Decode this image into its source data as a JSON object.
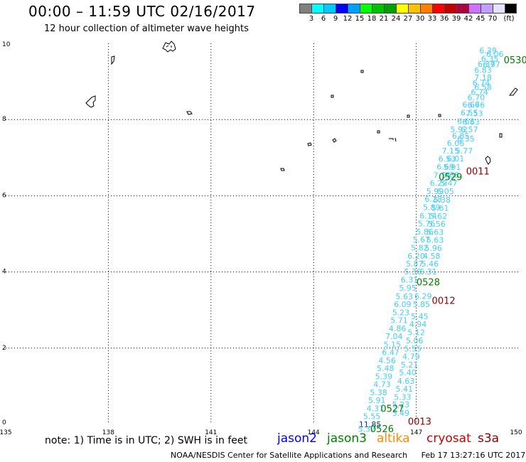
{
  "header": {
    "title": "00:00 – 11:59 UTC 02/16/2017",
    "subtitle": "12 hour collection of altimeter wave heights"
  },
  "legend": {
    "colors": [
      "#808080",
      "#00ffff",
      "#00c8ff",
      "#0000ff",
      "#00a0ff",
      "#00ff00",
      "#00c000",
      "#00a000",
      "#ffff00",
      "#ffc000",
      "#ff8000",
      "#ff0000",
      "#c00000",
      "#b00040",
      "#d070ff",
      "#c0a0ff",
      "#e8e0ff",
      "#000000"
    ],
    "labels": [
      "3",
      "6",
      "9",
      "12",
      "15",
      "18",
      "21",
      "24",
      "27",
      "30",
      "33",
      "36",
      "39",
      "42",
      "45",
      "70",
      "(ft)"
    ]
  },
  "axes": {
    "x_ticks": [
      "135",
      "138",
      "141",
      "144",
      "147",
      "150"
    ],
    "y_ticks": [
      "0",
      "2",
      "4",
      "6",
      "8",
      "10"
    ]
  },
  "wave_labels": {
    "track_colors": {
      "jason3": "#40d0ff",
      "other": "#1030a0"
    },
    "values": [
      {
        "t": "6.39",
        "x": 149.1,
        "y": 9.81,
        "c": "jason3"
      },
      {
        "t": "6.06",
        "x": 149.3,
        "y": 9.72,
        "c": "jason3"
      },
      {
        "t": "6.35",
        "x": 149.15,
        "y": 9.6,
        "c": "jason3"
      },
      {
        "t": "6.37",
        "x": 149.05,
        "y": 9.46,
        "c": "jason3"
      },
      {
        "t": "6.97",
        "x": 149.2,
        "y": 9.45,
        "c": "jason3"
      },
      {
        "t": "6.83",
        "x": 148.95,
        "y": 9.3,
        "c": "jason3"
      },
      {
        "t": "7.18",
        "x": 148.95,
        "y": 9.1,
        "c": "jason3"
      },
      {
        "t": "6.74",
        "x": 148.9,
        "y": 8.96,
        "c": "jason3"
      },
      {
        "t": "6.58",
        "x": 148.95,
        "y": 8.85,
        "c": "jason3"
      },
      {
        "t": "6.74",
        "x": 148.85,
        "y": 8.72,
        "c": "jason3"
      },
      {
        "t": "6.70",
        "x": 148.75,
        "y": 8.58,
        "c": "jason3"
      },
      {
        "t": "6.66",
        "x": 148.6,
        "y": 8.4,
        "c": "jason3"
      },
      {
        "t": "6.76",
        "x": 148.75,
        "y": 8.39,
        "c": "jason3"
      },
      {
        "t": "6.55",
        "x": 148.55,
        "y": 8.18,
        "c": "jason3"
      },
      {
        "t": "7.53",
        "x": 148.7,
        "y": 8.16,
        "c": "jason3"
      },
      {
        "t": "6.63",
        "x": 148.45,
        "y": 7.96,
        "c": "jason3"
      },
      {
        "t": "6.63",
        "x": 148.6,
        "y": 7.94,
        "c": "jason3"
      },
      {
        "t": "5.92",
        "x": 148.25,
        "y": 7.74,
        "c": "jason3"
      },
      {
        "t": "6.57",
        "x": 148.55,
        "y": 7.74,
        "c": "jason3"
      },
      {
        "t": "6.85",
        "x": 148.3,
        "y": 7.57,
        "c": "jason3"
      },
      {
        "t": "6.35",
        "x": 148.45,
        "y": 7.5,
        "c": "jason3"
      },
      {
        "t": "6.06",
        "x": 148.15,
        "y": 7.38,
        "c": "jason3"
      },
      {
        "t": "5.77",
        "x": 148.4,
        "y": 7.18,
        "c": "jason3"
      },
      {
        "t": "7.15",
        "x": 148.0,
        "y": 7.18,
        "c": "jason3"
      },
      {
        "t": "6.53",
        "x": 147.9,
        "y": 6.97,
        "c": "jason3"
      },
      {
        "t": "6.01",
        "x": 148.15,
        "y": 6.98,
        "c": "jason3"
      },
      {
        "t": "6.69",
        "x": 147.85,
        "y": 6.76,
        "c": "jason3"
      },
      {
        "t": "5.91",
        "x": 148.05,
        "y": 6.75,
        "c": "jason3"
      },
      {
        "t": "7.15",
        "x": 147.75,
        "y": 6.54,
        "c": "jason3"
      },
      {
        "t": "5.68",
        "x": 148.0,
        "y": 6.55,
        "c": "jason3"
      },
      {
        "t": "6.29",
        "x": 147.65,
        "y": 6.33,
        "c": "jason3"
      },
      {
        "t": "5.47",
        "x": 147.95,
        "y": 6.33,
        "c": "jason3"
      },
      {
        "t": "5.99",
        "x": 147.55,
        "y": 6.12,
        "c": "jason3"
      },
      {
        "t": "6.05",
        "x": 147.85,
        "y": 6.12,
        "c": "jason3"
      },
      {
        "t": "6.28",
        "x": 147.5,
        "y": 5.91,
        "c": "jason3"
      },
      {
        "t": "5.38",
        "x": 147.75,
        "y": 5.9,
        "c": "jason3"
      },
      {
        "t": "5.89",
        "x": 147.45,
        "y": 5.7,
        "c": "jason3"
      },
      {
        "t": "5.61",
        "x": 147.7,
        "y": 5.68,
        "c": "jason3"
      },
      {
        "t": "6.14",
        "x": 147.35,
        "y": 5.48,
        "c": "jason3"
      },
      {
        "t": "5.62",
        "x": 147.65,
        "y": 5.47,
        "c": "jason3"
      },
      {
        "t": "5.76",
        "x": 147.3,
        "y": 5.27,
        "c": "jason3"
      },
      {
        "t": "5.56",
        "x": 147.6,
        "y": 5.26,
        "c": "jason3"
      },
      {
        "t": "5.86",
        "x": 147.25,
        "y": 5.06,
        "c": "jason3"
      },
      {
        "t": "5.63",
        "x": 147.55,
        "y": 5.05,
        "c": "jason3"
      },
      {
        "t": "5.67",
        "x": 147.15,
        "y": 4.85,
        "c": "jason3"
      },
      {
        "t": "5.63",
        "x": 147.55,
        "y": 4.84,
        "c": "jason3"
      },
      {
        "t": "5.82",
        "x": 147.1,
        "y": 4.64,
        "c": "jason3"
      },
      {
        "t": "5.96",
        "x": 147.5,
        "y": 4.63,
        "c": "jason3"
      },
      {
        "t": "6.20",
        "x": 147.0,
        "y": 4.42,
        "c": "jason3"
      },
      {
        "t": "4.58",
        "x": 147.45,
        "y": 4.42,
        "c": "jason3"
      },
      {
        "t": "5.87",
        "x": 146.95,
        "y": 4.22,
        "c": "jason3"
      },
      {
        "t": "5.46",
        "x": 147.4,
        "y": 4.22,
        "c": "jason3"
      },
      {
        "t": "5.36",
        "x": 146.9,
        "y": 4.01,
        "c": "jason3"
      },
      {
        "t": "6.31",
        "x": 147.35,
        "y": 4.01,
        "c": "jason3"
      },
      {
        "t": "6.31",
        "x": 146.8,
        "y": 3.8,
        "c": "jason3"
      },
      {
        "t": "5.95",
        "x": 146.75,
        "y": 3.58,
        "c": "jason3"
      },
      {
        "t": "6.29",
        "x": 147.2,
        "y": 3.37,
        "c": "jason3"
      },
      {
        "t": "5.63",
        "x": 146.65,
        "y": 3.36,
        "c": "jason3"
      },
      {
        "t": "6.09",
        "x": 146.6,
        "y": 3.15,
        "c": "jason3"
      },
      {
        "t": "5.85",
        "x": 147.15,
        "y": 3.15,
        "c": "jason3"
      },
      {
        "t": "5.23",
        "x": 146.55,
        "y": 2.94,
        "c": "jason3"
      },
      {
        "t": "5.71",
        "x": 146.5,
        "y": 2.73,
        "c": "jason3"
      },
      {
        "t": "5.45",
        "x": 147.1,
        "y": 2.84,
        "c": "jason3"
      },
      {
        "t": "4.86",
        "x": 146.45,
        "y": 2.52,
        "c": "jason3"
      },
      {
        "t": "4.94",
        "x": 147.05,
        "y": 2.63,
        "c": "jason3"
      },
      {
        "t": "5.12",
        "x": 147.0,
        "y": 2.42,
        "c": "jason3"
      },
      {
        "t": "7.04",
        "x": 146.35,
        "y": 2.31,
        "c": "jason3"
      },
      {
        "t": "5.06",
        "x": 146.95,
        "y": 2.2,
        "c": "jason3"
      },
      {
        "t": "5.15",
        "x": 146.3,
        "y": 2.1,
        "c": "jason3"
      },
      {
        "t": "5.55",
        "x": 146.9,
        "y": 1.99,
        "c": "jason3"
      },
      {
        "t": "6.47",
        "x": 146.25,
        "y": 1.89,
        "c": "jason3"
      },
      {
        "t": "4.79",
        "x": 146.85,
        "y": 1.78,
        "c": "jason3"
      },
      {
        "t": "4.56",
        "x": 146.15,
        "y": 1.68,
        "c": "jason3"
      },
      {
        "t": "5.21",
        "x": 146.8,
        "y": 1.57,
        "c": "jason3"
      },
      {
        "t": "5.48",
        "x": 146.1,
        "y": 1.47,
        "c": "jason3"
      },
      {
        "t": "5.40",
        "x": 146.75,
        "y": 1.36,
        "c": "jason3"
      },
      {
        "t": "5.39",
        "x": 146.05,
        "y": 1.26,
        "c": "jason3"
      },
      {
        "t": "4.63",
        "x": 146.7,
        "y": 1.14,
        "c": "jason3"
      },
      {
        "t": "4.73",
        "x": 146.0,
        "y": 1.05,
        "c": "jason3"
      },
      {
        "t": "5.41",
        "x": 146.65,
        "y": 0.93,
        "c": "jason3"
      },
      {
        "t": "5.38",
        "x": 145.9,
        "y": 0.84,
        "c": "jason3"
      },
      {
        "t": "5.91",
        "x": 145.85,
        "y": 0.63,
        "c": "jason3"
      },
      {
        "t": "5.33",
        "x": 146.6,
        "y": 0.72,
        "c": "jason3"
      },
      {
        "t": "4.31",
        "x": 145.8,
        "y": 0.42,
        "c": "jason3"
      },
      {
        "t": "5.23",
        "x": 146.55,
        "y": 0.52,
        "c": "jason3"
      },
      {
        "t": "5.55",
        "x": 145.7,
        "y": 0.21,
        "c": "jason3"
      },
      {
        "t": "5.49",
        "x": 146.55,
        "y": 0.3,
        "c": "jason3"
      },
      {
        "t": "11.85",
        "x": 145.65,
        "y": 0.0,
        "c": "other"
      },
      {
        "t": "5.32",
        "x": 145.55,
        "y": -0.12,
        "c": "jason3"
      }
    ]
  },
  "time_labels": [
    {
      "t": "0530",
      "x": 149.9,
      "y": 9.57,
      "color": "#008000"
    },
    {
      "t": "0011",
      "x": 148.8,
      "y": 6.65,
      "color": "#8b0000"
    },
    {
      "t": "0529",
      "x": 148.0,
      "y": 6.5,
      "color": "#008000"
    },
    {
      "t": "0528",
      "x": 147.35,
      "y": 3.74,
      "color": "#008000"
    },
    {
      "t": "0012",
      "x": 147.8,
      "y": 3.26,
      "color": "#8b0000"
    },
    {
      "t": "0527",
      "x": 146.3,
      "y": 0.42,
      "color": "#008000"
    },
    {
      "t": "0013",
      "x": 147.1,
      "y": 0.08,
      "color": "#8b0000"
    },
    {
      "t": "0526",
      "x": 146.0,
      "y": -0.11,
      "color": "#008000"
    }
  ],
  "note": "note:  1) Time is in UTC;  2) SWH is in feet",
  "satellites": [
    {
      "name": "jason2",
      "color": "#0000ff"
    },
    {
      "name": "jason3",
      "color": "#008000"
    },
    {
      "name": "altika",
      "color": "#ff8c00"
    },
    {
      "name": "cryosat",
      "color": "#cc0000"
    },
    {
      "name": "s3a",
      "color": "#8b0000"
    }
  ],
  "footer": {
    "credit": "NOAA/NESDIS Center for Satellite Applications and Research",
    "timestamp": "Feb 17 13:27:16 UTC 2017"
  }
}
